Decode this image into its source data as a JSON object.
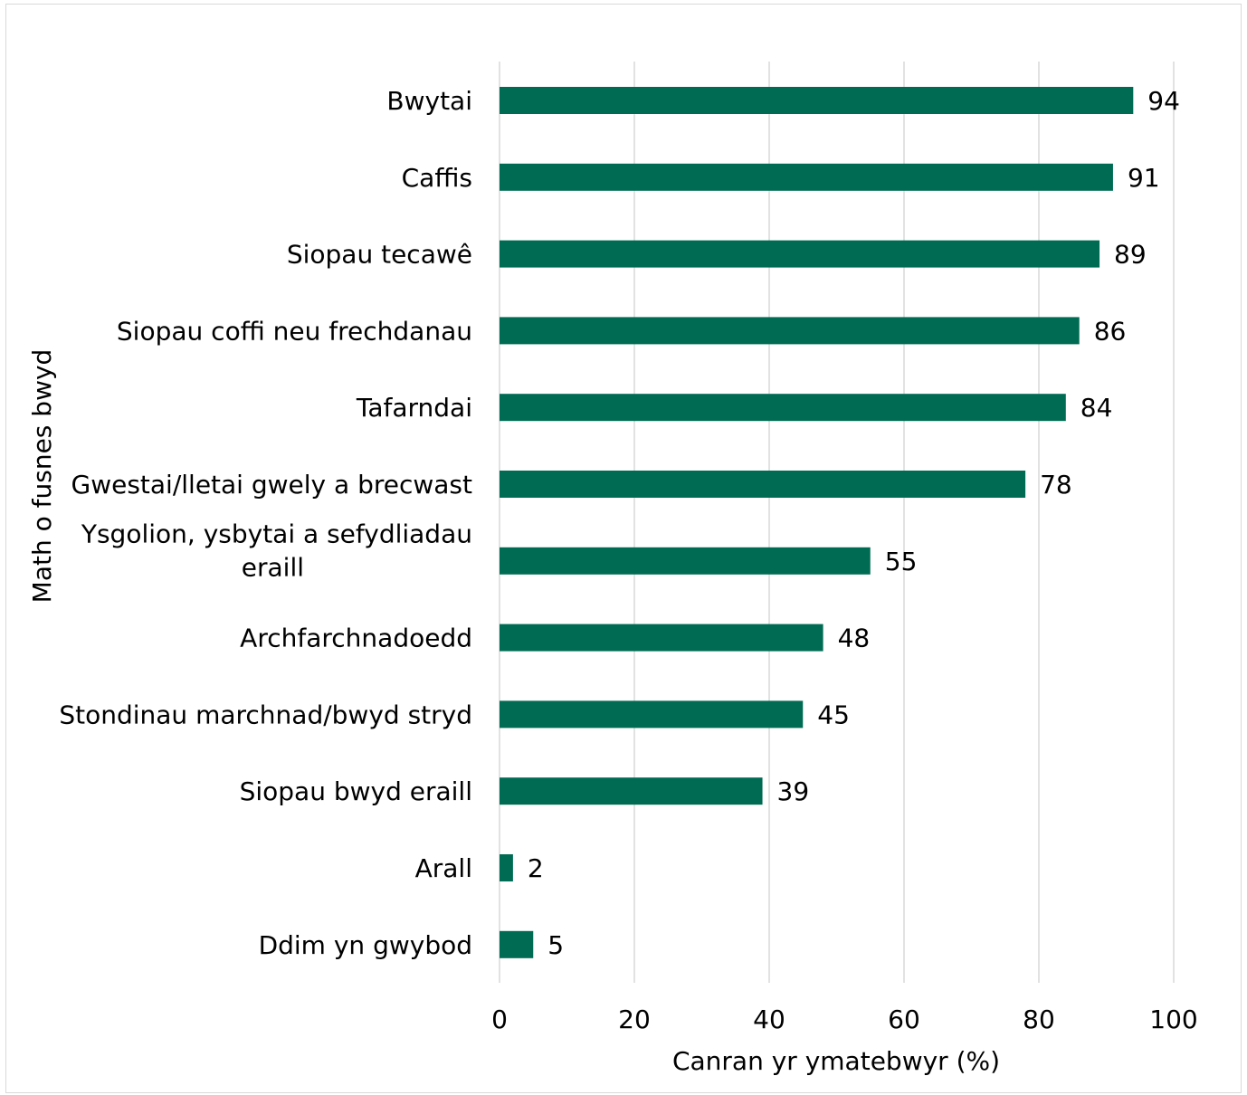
{
  "chart_data": {
    "type": "bar",
    "orientation": "horizontal",
    "categories": [
      "Bwytai",
      "Caffis",
      "Siopau tecawê",
      "Siopau coffi neu frechdanau",
      "Tafarndai",
      "Gwestai/lletai gwely a brecwast",
      "Ysgolion, ysbytai a sefydliadau eraill",
      "Archfarchnadoedd",
      "Stondinau marchnad/bwyd stryd",
      "Siopau bwyd eraill",
      "Arall",
      "Ddim yn gwybod"
    ],
    "category_lines": [
      [
        "Bwytai"
      ],
      [
        "Caffis"
      ],
      [
        "Siopau tecawê"
      ],
      [
        "Siopau coffi neu frechdanau"
      ],
      [
        "Tafarndai"
      ],
      [
        "Gwestai/lletai gwely a brecwast"
      ],
      [
        "Ysgolion, ysbytai a sefydliadau",
        "eraill"
      ],
      [
        "Archfarchnadoedd"
      ],
      [
        "Stondinau marchnad/bwyd stryd"
      ],
      [
        "Siopau bwyd eraill"
      ],
      [
        "Arall"
      ],
      [
        "Ddim yn gwybod"
      ]
    ],
    "values": [
      94,
      91,
      89,
      86,
      84,
      78,
      55,
      48,
      45,
      39,
      2,
      5
    ],
    "data_labels": [
      "94",
      "91",
      "89",
      "86",
      "84",
      "78",
      "55",
      "48",
      "45",
      "39",
      "2",
      "5"
    ],
    "xlim": [
      0,
      100
    ],
    "x_ticks": [
      0,
      20,
      40,
      60,
      80,
      100
    ],
    "x_tick_labels": [
      "0",
      "20",
      "40",
      "60",
      "80",
      "100"
    ],
    "xlabel": "Canran yr ymatebwyr (%)",
    "ylabel": "Math o fusnes bwyd",
    "title": "",
    "grid": "vertical",
    "legend": "none",
    "colors": {
      "bar": "#006b53",
      "grid": "#d9d9d9",
      "frame": "#d9d9d9"
    }
  }
}
